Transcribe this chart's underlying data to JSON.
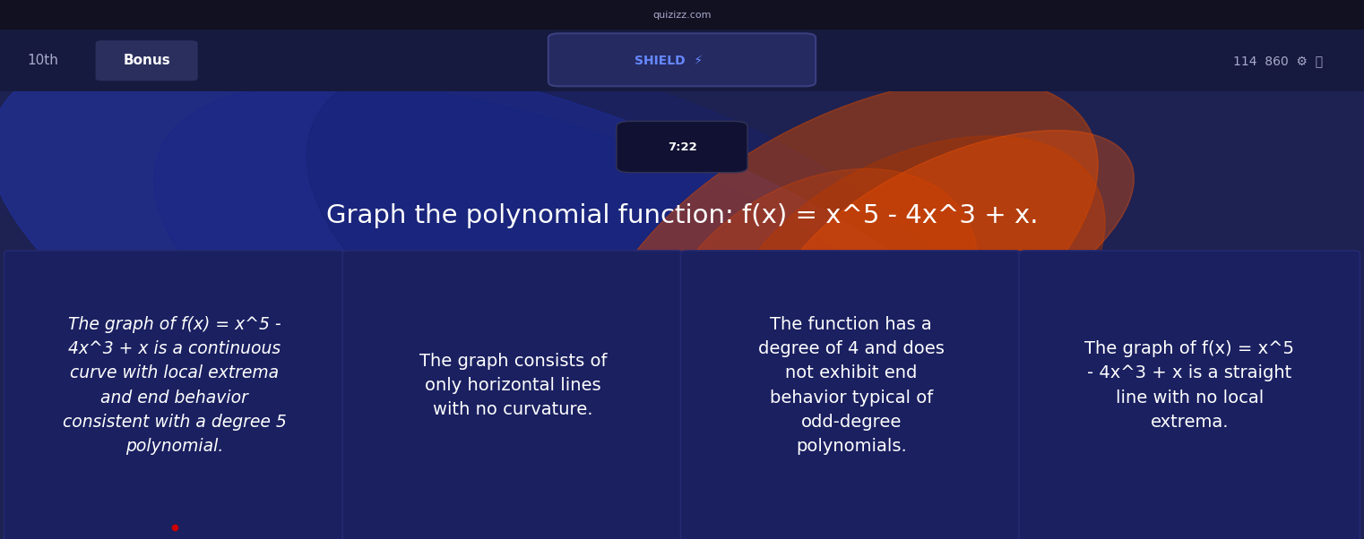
{
  "bg_color": "#1e2252",
  "header_bg": "#161a3e",
  "top_bar_text_left": "10th    Bonus",
  "top_bar_center": "SHIELD  ⚡",
  "top_bar_right": "114  860  ⚙  ⧉",
  "timer_text": "7:22",
  "question": "Graph the polynomial function: f(x) = x^5 - 4x^3 + x.",
  "question_fontsize": 21,
  "answer_boxes": [
    {
      "text": "The graph of f(x) = x^5 -\n4x^3 + x is a continuous\ncurve with local extrema\nand end behavior\nconsistent with a degree 5\npolynomial.",
      "bg_color": "#1a2060",
      "text_color": "#ffffff",
      "italic": true
    },
    {
      "text": "The graph consists of\nonly horizontal lines\nwith no curvature.",
      "bg_color": "#1a2060",
      "text_color": "#ffffff",
      "italic": false
    },
    {
      "text": "The function has a\ndegree of 4 and does\nnot exhibit end\nbehavior typical of\nodd-degree\npolynomials.",
      "bg_color": "#1a2060",
      "text_color": "#ffffff",
      "italic": false
    },
    {
      "text": "The graph of f(x) = x^5\n- 4x^3 + x is a straight\nline with no local\nextrema.",
      "bg_color": "#1a2060",
      "text_color": "#ffffff",
      "italic": false
    }
  ],
  "figsize": [
    15.22,
    6.02
  ],
  "dpi": 100,
  "os_bar_color": "#111122",
  "os_bar_height": 0.055
}
